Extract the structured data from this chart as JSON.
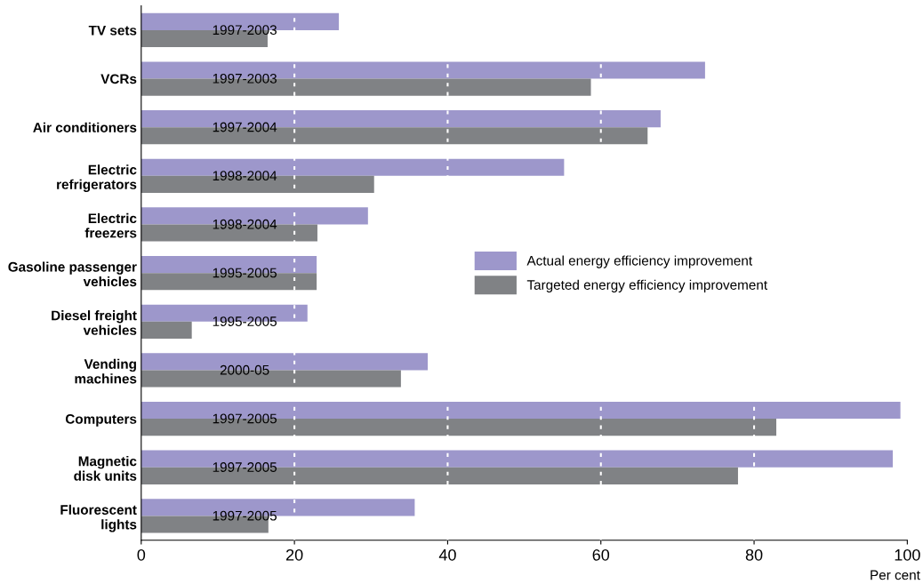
{
  "chart_data": {
    "type": "bar",
    "orientation": "horizontal",
    "categories": [
      "TV sets",
      "VCRs",
      "Air conditioners",
      "Electric\nrefrigerators",
      "Electric\nfreezers",
      "Gasoline passenger\nvehicles",
      "Diesel freight\nvehicles",
      "Vending\nmachines",
      "Computers",
      "Magnetic\ndisk units",
      "Fluorescent\nlights"
    ],
    "series": [
      {
        "name": "Actual energy efficiency improvement",
        "color": "#9d97cb",
        "values": [
          25.8,
          73.6,
          67.8,
          55.2,
          29.6,
          22.9,
          21.7,
          37.4,
          99.1,
          98.1,
          35.7
        ]
      },
      {
        "name": "Targeted energy efficiency improvement",
        "color": "#808285",
        "values": [
          16.5,
          58.7,
          66.1,
          30.4,
          23.0,
          22.9,
          6.6,
          33.9,
          82.9,
          77.9,
          16.6
        ]
      }
    ],
    "annotations": [
      "1997-2003",
      "1997-2003",
      "1997-2004",
      "1998-2004",
      "1998-2004",
      "1995-2005",
      "1995-2005",
      "2000-05",
      "1997-2005",
      "1997-2005",
      "1997-2005"
    ],
    "xlabel": "Per cent",
    "xlim": [
      0,
      100
    ],
    "xticks": [
      0,
      20,
      40,
      60,
      80,
      100
    ],
    "grid": "x",
    "legend": "right"
  }
}
